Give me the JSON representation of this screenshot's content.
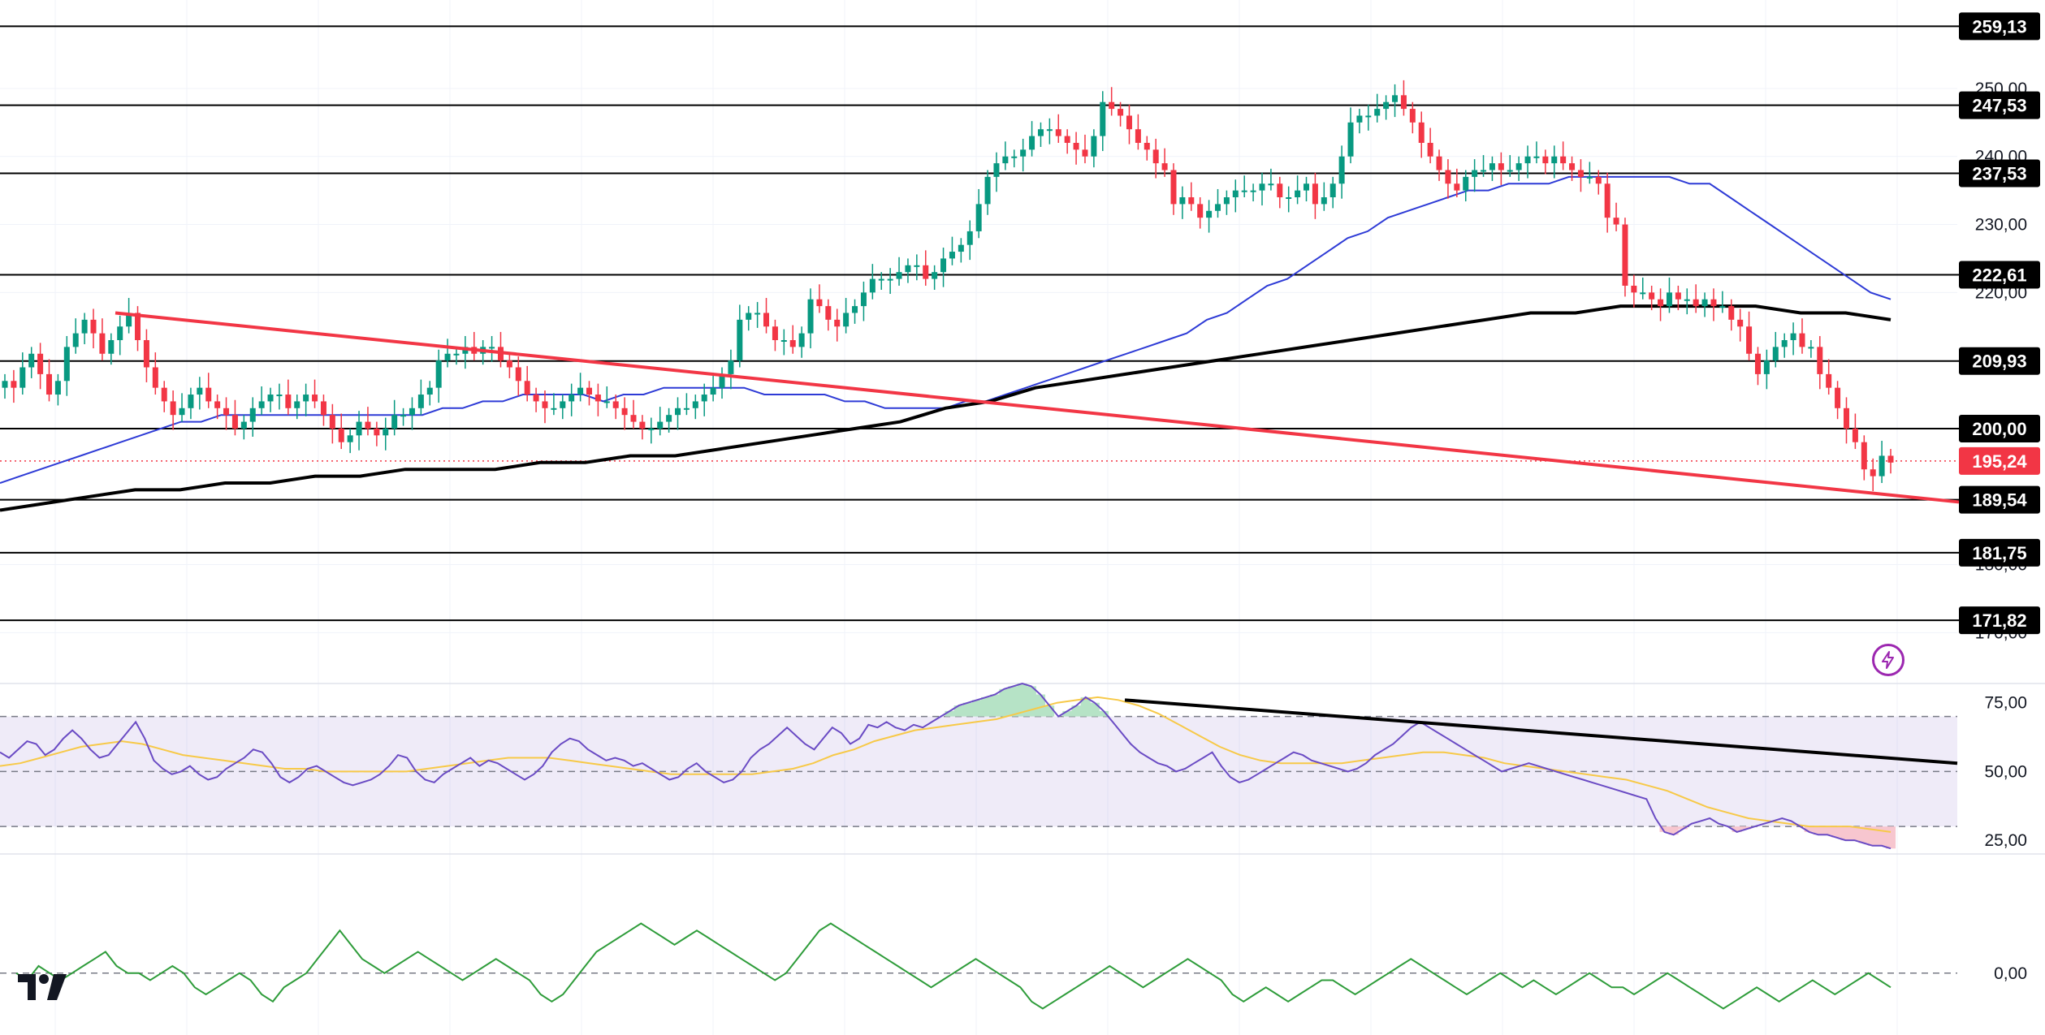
{
  "chart_data": [
    {
      "type": "candlestick",
      "title": "",
      "ylim": [
        163,
        263
      ],
      "y_ticks": [
        "250,00",
        "240,00",
        "230,00",
        "220,00",
        "180,00",
        "170,00"
      ],
      "last_price": 195.24,
      "last_price_label": "195,24",
      "last_price_color": "#f23645",
      "levels": [
        {
          "value": 259.13,
          "label": "259,13"
        },
        {
          "value": 247.53,
          "label": "247,53"
        },
        {
          "value": 237.53,
          "label": "237,53"
        },
        {
          "value": 222.61,
          "label": "222,61"
        },
        {
          "value": 209.93,
          "label": "209,93"
        },
        {
          "value": 200.0,
          "label": "200,00"
        },
        {
          "value": 189.54,
          "label": "189,54"
        },
        {
          "value": 181.75,
          "label": "181,75"
        },
        {
          "value": 171.82,
          "label": "171,82"
        }
      ],
      "close": [
        207,
        206,
        209,
        211,
        208,
        205,
        207,
        212,
        214,
        216,
        214,
        211,
        213,
        215,
        217,
        213,
        209,
        206,
        204,
        202,
        203,
        205,
        206,
        204,
        203,
        202,
        200,
        201,
        203,
        204,
        205,
        205,
        203,
        204,
        205,
        204,
        202,
        200,
        198,
        199,
        201,
        200,
        199,
        200,
        202,
        202,
        203,
        205,
        206,
        210,
        211,
        211,
        212,
        211,
        212,
        212,
        210,
        209,
        207,
        205,
        204,
        203,
        203,
        204,
        205,
        206,
        205,
        204,
        204,
        203,
        202,
        201,
        200,
        200,
        201,
        202,
        203,
        203,
        204,
        205,
        206,
        208,
        210,
        216,
        217,
        217,
        215,
        213,
        213,
        212,
        214,
        219,
        218,
        216,
        215,
        217,
        218,
        220,
        222,
        222,
        222,
        223,
        224,
        224,
        222,
        223,
        225,
        226,
        227,
        229,
        233,
        237,
        239,
        240,
        240,
        241,
        243,
        244,
        244,
        243,
        242,
        241,
        240,
        243,
        248,
        247,
        246,
        244,
        242,
        241,
        239,
        238,
        233,
        234,
        233,
        231,
        232,
        233,
        234,
        235,
        235,
        235,
        236,
        236,
        234,
        234,
        235,
        236,
        233,
        234,
        236,
        240,
        245,
        246,
        246,
        247,
        248,
        249,
        247,
        245,
        242,
        240,
        238,
        236,
        235,
        237,
        238,
        238,
        239,
        238,
        238,
        239,
        240,
        240,
        239,
        240,
        239,
        238,
        237,
        237,
        236,
        231,
        230,
        221,
        220,
        220,
        219,
        218,
        220,
        219,
        219,
        218,
        219,
        218,
        218,
        216,
        215,
        211,
        208,
        210,
        212,
        213,
        214,
        212,
        212,
        208,
        206,
        203,
        200,
        198,
        194,
        193,
        196,
        195
      ],
      "ma50": [
        192,
        193,
        194,
        195,
        196,
        197,
        198,
        199,
        200,
        201,
        201,
        202,
        202,
        202,
        202,
        202,
        202,
        202,
        202,
        202,
        202,
        202,
        203,
        203,
        204,
        204,
        205,
        205,
        205,
        205,
        204,
        205,
        205,
        206,
        206,
        206,
        206,
        206,
        205,
        205,
        205,
        205,
        204,
        204,
        203,
        203,
        203,
        203,
        204,
        204,
        205,
        206,
        207,
        208,
        209,
        210,
        211,
        212,
        213,
        214,
        216,
        217,
        219,
        221,
        222,
        224,
        226,
        228,
        229,
        231,
        232,
        233,
        234,
        235,
        235,
        236,
        236,
        236,
        237,
        237,
        237,
        237,
        237,
        237,
        236,
        236,
        234,
        232,
        230,
        228,
        226,
        224,
        222,
        220,
        219
      ],
      "ma200": [
        188,
        189,
        190,
        191,
        191,
        192,
        192,
        193,
        193,
        194,
        194,
        194,
        195,
        195,
        196,
        196,
        197,
        198,
        199,
        200,
        201,
        203,
        204,
        206,
        207,
        208,
        209,
        210,
        211,
        212,
        213,
        214,
        215,
        216,
        217,
        217,
        218,
        218,
        218,
        218,
        217,
        217,
        216
      ],
      "trendline": {
        "start": 217.0,
        "end": 189.2
      }
    },
    {
      "type": "line",
      "title": "",
      "ylim": [
        20,
        82
      ],
      "y_ticks": [
        "75,00",
        "50,00",
        "25,00"
      ],
      "bands": [
        30,
        50,
        70
      ],
      "rsi": [
        57,
        55,
        58,
        61,
        60,
        56,
        58,
        62,
        65,
        62,
        58,
        55,
        56,
        60,
        64,
        68,
        62,
        54,
        51,
        49,
        50,
        52,
        49,
        47,
        48,
        51,
        53,
        55,
        58,
        57,
        53,
        48,
        46,
        48,
        51,
        52,
        50,
        48,
        46,
        45,
        46,
        47,
        49,
        52,
        56,
        55,
        50,
        47,
        46,
        49,
        51,
        53,
        55,
        52,
        54,
        53,
        51,
        49,
        47,
        49,
        52,
        57,
        60,
        62,
        61,
        58,
        56,
        54,
        55,
        54,
        52,
        53,
        51,
        49,
        47,
        48,
        51,
        53,
        50,
        48,
        46,
        47,
        50,
        55,
        58,
        60,
        63,
        66,
        63,
        60,
        58,
        62,
        66,
        64,
        60,
        62,
        67,
        66,
        68,
        66,
        65,
        67,
        66,
        68,
        70,
        72,
        74,
        75,
        76,
        77,
        78,
        80,
        81,
        82,
        81,
        78,
        74,
        70,
        72,
        74,
        77,
        75,
        72,
        68,
        64,
        60,
        57,
        55,
        53,
        52,
        50,
        51,
        53,
        55,
        57,
        52,
        48,
        46,
        47,
        49,
        51,
        53,
        55,
        57,
        56,
        54,
        53,
        52,
        51,
        50,
        51,
        53,
        56,
        58,
        60,
        63,
        66,
        68,
        66,
        64,
        62,
        60,
        58,
        56,
        54,
        52,
        50,
        51,
        52,
        53,
        52,
        51,
        50,
        49,
        48,
        47,
        46,
        45,
        44,
        43,
        42,
        41,
        40,
        33,
        28,
        27,
        29,
        31,
        32,
        33,
        31,
        30,
        28,
        29,
        30,
        31,
        32,
        33,
        32,
        30,
        28,
        27,
        27,
        26,
        25,
        25,
        24,
        23,
        23,
        22
      ],
      "rsi_ma": [
        52,
        53,
        55,
        57,
        59,
        60,
        61,
        60,
        58,
        56,
        55,
        54,
        53,
        52,
        51,
        51,
        50,
        50,
        50,
        50,
        50,
        51,
        52,
        53,
        54,
        55,
        55,
        55,
        54,
        53,
        52,
        51,
        50,
        49,
        49,
        49,
        49,
        49,
        50,
        51,
        53,
        56,
        58,
        61,
        63,
        65,
        66,
        67,
        68,
        69,
        71,
        73,
        75,
        76,
        77,
        76,
        74,
        71,
        67,
        63,
        59,
        56,
        54,
        53,
        53,
        53,
        53,
        54,
        55,
        56,
        57,
        57,
        56,
        55,
        53,
        52,
        51,
        50,
        49,
        48,
        47,
        45,
        43,
        40,
        37,
        35,
        33,
        32,
        31,
        30,
        30,
        30,
        29,
        28
      ],
      "trendline": {
        "start": 76,
        "end": 53
      }
    },
    {
      "type": "line",
      "title": "",
      "zero_label": "0,00",
      "values": [
        0,
        -1,
        1,
        0,
        -1,
        0,
        1,
        2,
        3,
        1,
        0,
        0,
        -1,
        0,
        1,
        0,
        -2,
        -3,
        -2,
        -1,
        0,
        -1,
        -3,
        -4,
        -2,
        -1,
        0,
        2,
        4,
        6,
        4,
        2,
        1,
        0,
        1,
        2,
        3,
        2,
        1,
        0,
        -1,
        0,
        1,
        2,
        1,
        0,
        -1,
        -3,
        -4,
        -3,
        -1,
        1,
        3,
        4,
        5,
        6,
        7,
        6,
        5,
        4,
        5,
        6,
        5,
        4,
        3,
        2,
        1,
        0,
        -1,
        0,
        2,
        4,
        6,
        7,
        6,
        5,
        4,
        3,
        2,
        1,
        0,
        -1,
        -2,
        -1,
        0,
        1,
        2,
        1,
        0,
        -1,
        -2,
        -4,
        -5,
        -4,
        -3,
        -2,
        -1,
        0,
        1,
        0,
        -1,
        -2,
        -1,
        0,
        1,
        2,
        1,
        0,
        -1,
        -3,
        -4,
        -3,
        -2,
        -3,
        -4,
        -3,
        -2,
        -1,
        -1,
        -2,
        -3,
        -2,
        -1,
        0,
        1,
        2,
        1,
        0,
        -1,
        -2,
        -3,
        -2,
        -1,
        0,
        -1,
        -2,
        -1,
        -2,
        -3,
        -2,
        -1,
        0,
        -1,
        -2,
        -2,
        -3,
        -2,
        -1,
        0,
        -1,
        -2,
        -3,
        -4,
        -5,
        -4,
        -3,
        -2,
        -3,
        -4,
        -3,
        -2,
        -1,
        -2,
        -3,
        -2,
        -1,
        0,
        -1,
        -2
      ],
      "ylim": [
        -7,
        9
      ]
    }
  ]
}
